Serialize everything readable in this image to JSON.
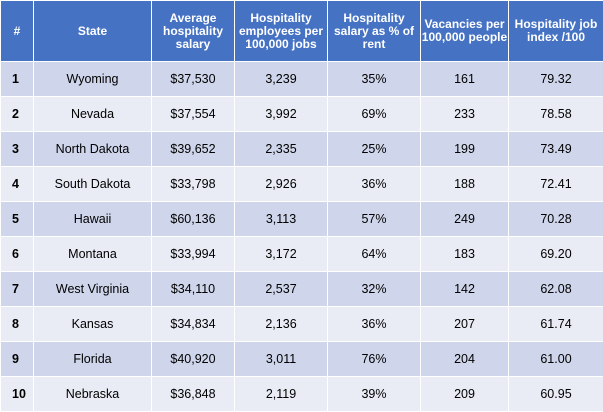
{
  "table": {
    "headers": [
      "#",
      "State",
      "Average hospitality salary",
      "Hospitality employees per 100,000 jobs",
      "Hospitality salary as % of rent",
      "Vacancies per 100,000 people",
      "Hospitality job index /100"
    ],
    "rows": [
      [
        "1",
        "Wyoming",
        "$37,530",
        "3,239",
        "35%",
        "161",
        "79.32"
      ],
      [
        "2",
        "Nevada",
        "$37,554",
        "3,992",
        "69%",
        "233",
        "78.58"
      ],
      [
        "3",
        "North Dakota",
        "$39,652",
        "2,335",
        "25%",
        "199",
        "73.49"
      ],
      [
        "4",
        "South Dakota",
        "$33,798",
        "2,926",
        "36%",
        "188",
        "72.41"
      ],
      [
        "5",
        "Hawaii",
        "$60,136",
        "3,113",
        "57%",
        "249",
        "70.28"
      ],
      [
        "6",
        "Montana",
        "$33,994",
        "3,172",
        "64%",
        "183",
        "69.20"
      ],
      [
        "7",
        "West Virginia",
        "$34,110",
        "2,537",
        "32%",
        "142",
        "62.08"
      ],
      [
        "8",
        "Kansas",
        "$34,834",
        "2,136",
        "36%",
        "207",
        "61.74"
      ],
      [
        "9",
        "Florida",
        "$40,920",
        "3,011",
        "76%",
        "204",
        "61.00"
      ],
      [
        "10",
        "Nebraska",
        "$36,848",
        "2,119",
        "39%",
        "209",
        "60.95"
      ]
    ]
  },
  "colors": {
    "header_bg": "#4672c4",
    "row_odd_bg": "#cfd5ea",
    "row_even_bg": "#e9ebf5"
  }
}
